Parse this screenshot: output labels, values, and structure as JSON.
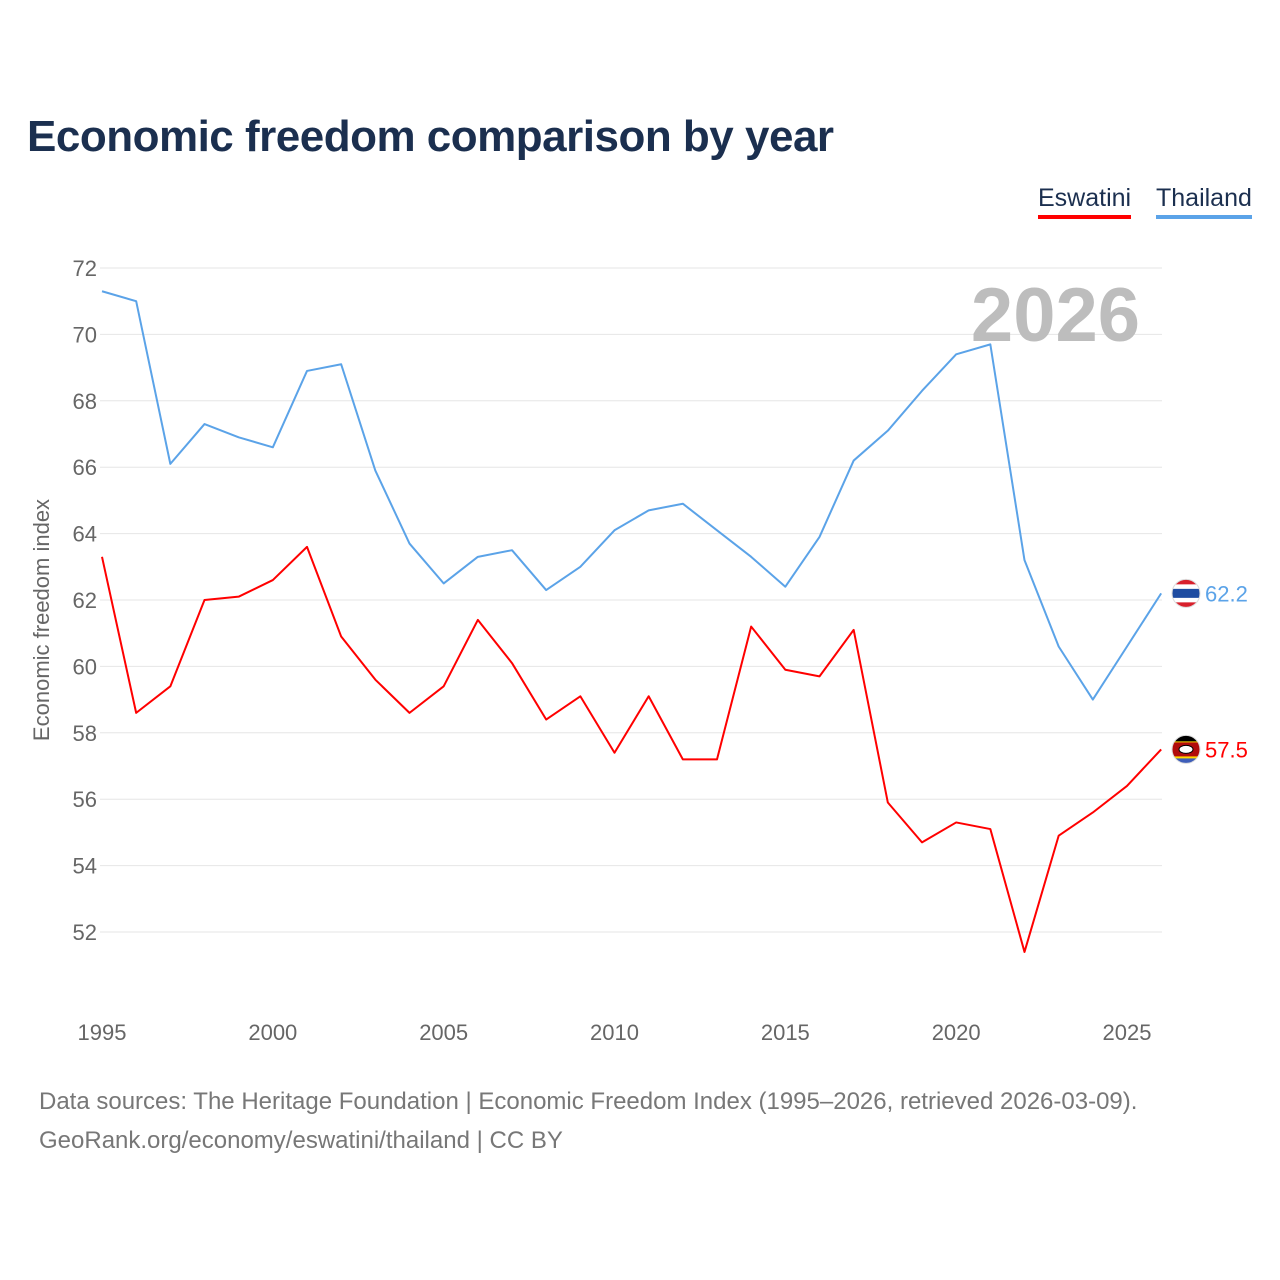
{
  "title": "Economic freedom comparison by year",
  "legend": [
    {
      "label": "Eswatini",
      "color": "#ff0000"
    },
    {
      "label": "Thailand",
      "color": "#5ba3e8"
    }
  ],
  "footer": {
    "line1": "Data sources: The Heritage Foundation | Economic Freedom Index (1995–2026, retrieved 2026-03-09).",
    "line2": "GeoRank.org/economy/eswatini/thailand | CC BY"
  },
  "chart_data": {
    "type": "line",
    "title": "Economic freedom comparison by year",
    "xlabel": "",
    "ylabel": "Economic freedom index",
    "year_watermark": "2026",
    "xlim": [
      1995,
      2026
    ],
    "ylim": [
      50,
      72
    ],
    "xticks": [
      1995,
      2000,
      2005,
      2010,
      2015,
      2020,
      2025
    ],
    "yticks": [
      52,
      54,
      56,
      58,
      60,
      62,
      64,
      66,
      68,
      70,
      72
    ],
    "grid": true,
    "legend_position": "top-right",
    "x": [
      1995,
      1996,
      1997,
      1998,
      1999,
      2000,
      2001,
      2002,
      2003,
      2004,
      2005,
      2006,
      2007,
      2008,
      2009,
      2010,
      2011,
      2012,
      2013,
      2014,
      2015,
      2016,
      2017,
      2018,
      2019,
      2020,
      2021,
      2022,
      2023,
      2024,
      2025,
      2026
    ],
    "series": [
      {
        "name": "Thailand",
        "color": "#5ba3e8",
        "end_label": "62.2",
        "values": [
          71.3,
          71.0,
          66.1,
          67.3,
          66.9,
          66.6,
          68.9,
          69.1,
          65.9,
          63.7,
          62.5,
          63.3,
          63.5,
          62.3,
          63.0,
          64.1,
          64.7,
          64.9,
          64.1,
          63.3,
          62.4,
          63.9,
          66.2,
          67.1,
          68.3,
          69.4,
          69.7,
          63.2,
          60.6,
          59.0,
          60.6,
          62.2
        ]
      },
      {
        "name": "Eswatini",
        "color": "#ff0000",
        "end_label": "57.5",
        "values": [
          63.3,
          58.6,
          59.4,
          62.0,
          62.1,
          62.6,
          63.6,
          60.9,
          59.6,
          58.6,
          59.4,
          61.4,
          60.1,
          58.4,
          59.1,
          57.4,
          59.1,
          57.2,
          57.2,
          61.2,
          59.9,
          59.7,
          61.1,
          55.9,
          54.7,
          55.3,
          55.1,
          51.4,
          54.9,
          55.6,
          56.4,
          57.5
        ]
      }
    ]
  }
}
